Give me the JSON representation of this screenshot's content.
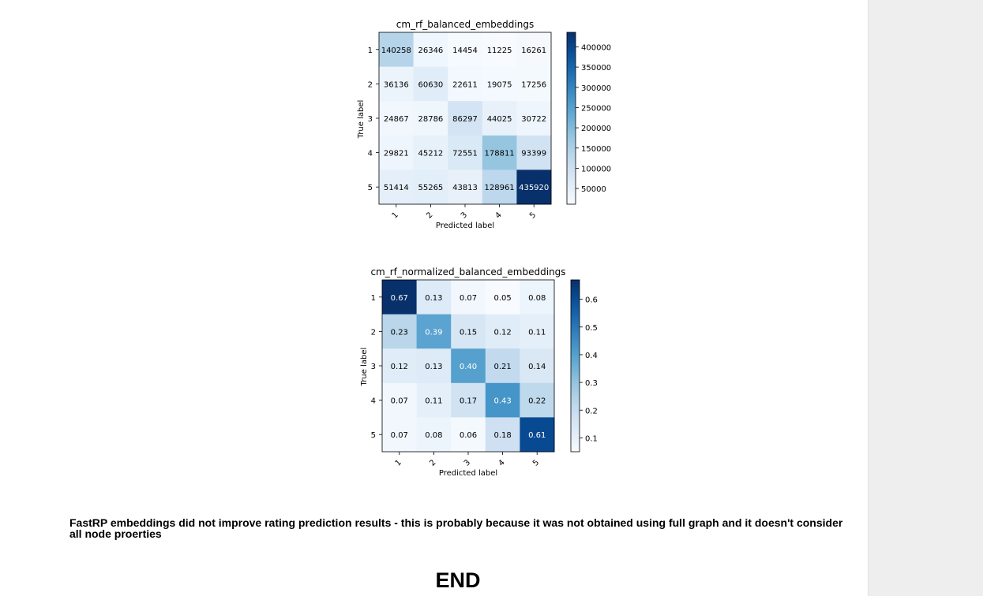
{
  "chart_data": [
    {
      "type": "heatmap",
      "title": "cm_rf_balanced_embeddings",
      "xlabel": "Predicted label",
      "ylabel": "True label",
      "x_tick_labels": [
        "1",
        "2",
        "3",
        "4",
        "5"
      ],
      "y_tick_labels": [
        "1",
        "2",
        "3",
        "4",
        "5"
      ],
      "matrix": [
        [
          140258,
          26346,
          14454,
          11225,
          16261
        ],
        [
          36136,
          60630,
          22611,
          19075,
          17256
        ],
        [
          24867,
          28786,
          86297,
          44025,
          30722
        ],
        [
          29821,
          45212,
          72551,
          178811,
          93399
        ],
        [
          51414,
          55265,
          43813,
          128961,
          435920
        ]
      ],
      "cell_labels": [
        [
          "140258",
          "26346",
          "14454",
          "11225",
          "16261"
        ],
        [
          "36136",
          "60630",
          "22611",
          "19075",
          "17256"
        ],
        [
          "24867",
          "28786",
          "86297",
          "44025",
          "30722"
        ],
        [
          "29821",
          "45212",
          "72551",
          "178811",
          "93399"
        ],
        [
          "51414",
          "55265",
          "43813",
          "128961",
          "435920"
        ]
      ],
      "colormap": "Blues",
      "color_range": [
        11225,
        435920
      ],
      "colorbar_ticks": [
        50000,
        100000,
        150000,
        200000,
        250000,
        300000,
        350000,
        400000
      ],
      "colorbar_tick_labels": [
        "50000",
        "100000",
        "150000",
        "200000",
        "250000",
        "300000",
        "350000",
        "400000"
      ]
    },
    {
      "type": "heatmap",
      "title": "cm_rf_normalized_balanced_embeddings",
      "xlabel": "Predicted label",
      "ylabel": "True label",
      "x_tick_labels": [
        "1",
        "2",
        "3",
        "4",
        "5"
      ],
      "y_tick_labels": [
        "1",
        "2",
        "3",
        "4",
        "5"
      ],
      "matrix": [
        [
          0.67,
          0.13,
          0.07,
          0.05,
          0.08
        ],
        [
          0.23,
          0.39,
          0.15,
          0.12,
          0.11
        ],
        [
          0.12,
          0.13,
          0.4,
          0.21,
          0.14
        ],
        [
          0.07,
          0.11,
          0.17,
          0.43,
          0.22
        ],
        [
          0.07,
          0.08,
          0.06,
          0.18,
          0.61
        ]
      ],
      "cell_labels": [
        [
          "0.67",
          "0.13",
          "0.07",
          "0.05",
          "0.08"
        ],
        [
          "0.23",
          "0.39",
          "0.15",
          "0.12",
          "0.11"
        ],
        [
          "0.12",
          "0.13",
          "0.40",
          "0.21",
          "0.14"
        ],
        [
          "0.07",
          "0.11",
          "0.17",
          "0.43",
          "0.22"
        ],
        [
          "0.07",
          "0.08",
          "0.06",
          "0.18",
          "0.61"
        ]
      ],
      "colormap": "Blues",
      "color_range": [
        0.05,
        0.67
      ],
      "colorbar_ticks": [
        0.1,
        0.2,
        0.3,
        0.4,
        0.5,
        0.6
      ],
      "colorbar_tick_labels": [
        "0.1",
        "0.2",
        "0.3",
        "0.4",
        "0.5",
        "0.6"
      ]
    }
  ],
  "notebook": {
    "conclusion_text": "FastRP embeddings did not improve rating prediction results - this is probably because it was not obtained using full graph and it doesn't consider all node proerties",
    "end_heading": "END"
  }
}
